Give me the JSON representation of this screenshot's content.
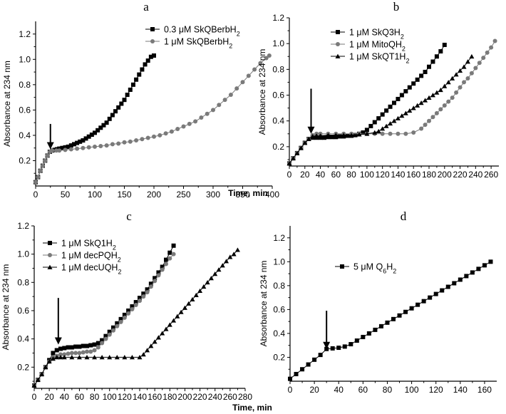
{
  "figure": {
    "shared_xlabel": "Time, min",
    "marker_colors": {
      "black": "#000000",
      "gray": "#7a7a7a"
    }
  },
  "chart_data": [
    {
      "panel": "a",
      "type": "scatter",
      "xlabel": "",
      "ylabel": "Absorbance at 234 nm",
      "xlim": [
        0,
        400
      ],
      "ylim": [
        0,
        1.3
      ],
      "xticks": [
        0,
        50,
        100,
        150,
        200,
        250,
        300,
        350,
        400
      ],
      "yticks": [
        0.2,
        0.4,
        0.6,
        0.8,
        1.0,
        1.2
      ],
      "legend_position": "top-right",
      "arrow": {
        "x": 25,
        "y_from": 0.49,
        "y_to": 0.29
      },
      "series": [
        {
          "name": "0.3 μM SkQBerbH",
          "name_sub": "2",
          "marker": "square",
          "color": "#000000",
          "x": [
            0,
            4,
            8,
            12,
            16,
            20,
            24,
            28,
            32,
            36,
            40,
            45,
            50,
            55,
            60,
            65,
            70,
            75,
            80,
            85,
            90,
            95,
            100,
            105,
            110,
            115,
            120,
            125,
            130,
            135,
            140,
            145,
            150,
            155,
            160,
            165,
            170,
            175,
            180,
            185,
            190,
            195,
            200
          ],
          "y": [
            0.03,
            0.07,
            0.12,
            0.16,
            0.2,
            0.24,
            0.27,
            0.28,
            0.285,
            0.29,
            0.295,
            0.3,
            0.305,
            0.31,
            0.32,
            0.33,
            0.34,
            0.35,
            0.36,
            0.375,
            0.39,
            0.405,
            0.42,
            0.44,
            0.46,
            0.48,
            0.5,
            0.53,
            0.56,
            0.59,
            0.62,
            0.65,
            0.68,
            0.72,
            0.76,
            0.8,
            0.84,
            0.88,
            0.92,
            0.96,
            0.99,
            1.02,
            1.03
          ]
        },
        {
          "name": "1 μM SkQBerbH",
          "name_sub": "2",
          "marker": "circle",
          "color": "#7a7a7a",
          "x": [
            0,
            4,
            8,
            12,
            16,
            20,
            24,
            28,
            35,
            40,
            50,
            60,
            70,
            80,
            90,
            100,
            110,
            120,
            130,
            140,
            150,
            160,
            170,
            180,
            190,
            200,
            210,
            220,
            230,
            240,
            250,
            260,
            270,
            280,
            290,
            300,
            310,
            320,
            330,
            340,
            350,
            360,
            370,
            380,
            390,
            395
          ],
          "y": [
            0.03,
            0.07,
            0.12,
            0.16,
            0.2,
            0.24,
            0.27,
            0.28,
            0.28,
            0.28,
            0.285,
            0.29,
            0.295,
            0.3,
            0.305,
            0.31,
            0.315,
            0.32,
            0.33,
            0.335,
            0.345,
            0.35,
            0.36,
            0.37,
            0.38,
            0.39,
            0.4,
            0.415,
            0.43,
            0.45,
            0.47,
            0.49,
            0.51,
            0.54,
            0.57,
            0.6,
            0.64,
            0.68,
            0.72,
            0.77,
            0.82,
            0.87,
            0.92,
            0.97,
            1.01,
            1.03
          ]
        }
      ]
    },
    {
      "panel": "b",
      "type": "scatter",
      "xlabel": "",
      "ylabel": "Absorbance at 234 nm",
      "xlim": [
        0,
        270
      ],
      "ylim": [
        0.05,
        1.2
      ],
      "xticks": [
        0,
        20,
        40,
        60,
        80,
        100,
        120,
        140,
        160,
        180,
        200,
        220,
        240,
        260
      ],
      "yticks": [
        0.2,
        0.4,
        0.6,
        0.8,
        1.0,
        1.2
      ],
      "legend_position": "top-left",
      "arrow": {
        "x": 28,
        "y_from": 0.65,
        "y_to": 0.3
      },
      "series": [
        {
          "name": "1 μM SkQ3H",
          "name_sub": "2",
          "marker": "square",
          "color": "#000000",
          "x": [
            0,
            5,
            10,
            15,
            20,
            25,
            30,
            35,
            40,
            45,
            50,
            55,
            60,
            65,
            70,
            75,
            80,
            85,
            90,
            95,
            100,
            105,
            110,
            115,
            120,
            125,
            130,
            135,
            140,
            145,
            150,
            155,
            160,
            165,
            170,
            175,
            180,
            185,
            190,
            195,
            200
          ],
          "y": [
            0.07,
            0.11,
            0.15,
            0.19,
            0.23,
            0.26,
            0.27,
            0.27,
            0.27,
            0.27,
            0.275,
            0.275,
            0.275,
            0.28,
            0.28,
            0.285,
            0.285,
            0.29,
            0.3,
            0.31,
            0.33,
            0.36,
            0.39,
            0.42,
            0.45,
            0.48,
            0.51,
            0.54,
            0.57,
            0.6,
            0.63,
            0.66,
            0.69,
            0.72,
            0.75,
            0.78,
            0.82,
            0.86,
            0.9,
            0.94,
            0.99
          ]
        },
        {
          "name": "1 μM MitoQH",
          "name_sub": "2",
          "marker": "circle",
          "color": "#7a7a7a",
          "x": [
            0,
            5,
            10,
            15,
            20,
            25,
            30,
            35,
            40,
            50,
            60,
            70,
            80,
            90,
            100,
            110,
            120,
            130,
            140,
            150,
            160,
            170,
            175,
            180,
            185,
            190,
            195,
            200,
            205,
            210,
            215,
            220,
            225,
            230,
            235,
            240,
            245,
            250,
            255,
            260,
            265
          ],
          "y": [
            0.07,
            0.11,
            0.15,
            0.19,
            0.23,
            0.26,
            0.29,
            0.3,
            0.3,
            0.3,
            0.3,
            0.3,
            0.3,
            0.3,
            0.3,
            0.3,
            0.3,
            0.3,
            0.3,
            0.3,
            0.31,
            0.34,
            0.37,
            0.4,
            0.43,
            0.46,
            0.49,
            0.52,
            0.55,
            0.58,
            0.62,
            0.66,
            0.7,
            0.73,
            0.77,
            0.81,
            0.85,
            0.89,
            0.93,
            0.97,
            1.02
          ]
        },
        {
          "name": "1 μM SkQT1H",
          "name_sub": "2",
          "marker": "triangle",
          "color": "#000000",
          "x": [
            0,
            5,
            10,
            15,
            20,
            25,
            30,
            35,
            40,
            50,
            60,
            70,
            80,
            90,
            100,
            110,
            115,
            120,
            125,
            130,
            135,
            140,
            145,
            150,
            155,
            160,
            165,
            170,
            175,
            180,
            185,
            190,
            195,
            200,
            205,
            210,
            215,
            220,
            225,
            230,
            235
          ],
          "y": [
            0.07,
            0.11,
            0.15,
            0.19,
            0.23,
            0.26,
            0.28,
            0.285,
            0.285,
            0.29,
            0.29,
            0.29,
            0.29,
            0.295,
            0.3,
            0.31,
            0.32,
            0.34,
            0.36,
            0.38,
            0.4,
            0.42,
            0.44,
            0.46,
            0.48,
            0.5,
            0.52,
            0.54,
            0.56,
            0.58,
            0.6,
            0.62,
            0.64,
            0.67,
            0.7,
            0.73,
            0.76,
            0.79,
            0.82,
            0.86,
            0.9
          ]
        }
      ]
    },
    {
      "panel": "c",
      "type": "scatter",
      "xlabel": "",
      "ylabel": "Absorbance at 234 nm",
      "xlim": [
        0,
        280
      ],
      "ylim": [
        0.05,
        1.2
      ],
      "xticks": [
        0,
        20,
        40,
        60,
        80,
        100,
        120,
        140,
        160,
        180,
        200,
        220,
        240,
        260,
        280
      ],
      "yticks": [
        0.2,
        0.4,
        0.6,
        0.8,
        1.0,
        1.2
      ],
      "legend_position": "top-left",
      "arrow": {
        "x": 32,
        "y_from": 0.69,
        "y_to": 0.36
      },
      "series": [
        {
          "name": "1 μM SkQ1H",
          "name_sub": "2",
          "marker": "square",
          "color": "#000000",
          "x": [
            0,
            5,
            10,
            15,
            20,
            25,
            30,
            35,
            40,
            45,
            50,
            55,
            60,
            65,
            70,
            75,
            80,
            85,
            90,
            95,
            100,
            105,
            110,
            115,
            120,
            125,
            130,
            135,
            140,
            145,
            150,
            155,
            160,
            165,
            170,
            175,
            180,
            185
          ],
          "y": [
            0.07,
            0.11,
            0.15,
            0.2,
            0.25,
            0.3,
            0.32,
            0.33,
            0.335,
            0.34,
            0.34,
            0.345,
            0.345,
            0.35,
            0.35,
            0.355,
            0.36,
            0.37,
            0.39,
            0.42,
            0.45,
            0.48,
            0.51,
            0.54,
            0.57,
            0.6,
            0.63,
            0.66,
            0.69,
            0.72,
            0.75,
            0.79,
            0.83,
            0.87,
            0.91,
            0.96,
            1.01,
            1.06
          ]
        },
        {
          "name": "1 μM decPQH",
          "name_sub": "2",
          "marker": "circle",
          "color": "#7a7a7a",
          "x": [
            0,
            5,
            10,
            15,
            20,
            25,
            30,
            35,
            40,
            45,
            50,
            55,
            60,
            65,
            70,
            75,
            80,
            85,
            90,
            95,
            100,
            105,
            110,
            115,
            120,
            125,
            130,
            135,
            140,
            145,
            150,
            155,
            160,
            165,
            170,
            175,
            180,
            185
          ],
          "y": [
            0.07,
            0.11,
            0.15,
            0.2,
            0.24,
            0.27,
            0.28,
            0.29,
            0.29,
            0.295,
            0.3,
            0.3,
            0.3,
            0.305,
            0.31,
            0.31,
            0.32,
            0.34,
            0.37,
            0.4,
            0.43,
            0.46,
            0.49,
            0.52,
            0.55,
            0.58,
            0.61,
            0.64,
            0.67,
            0.7,
            0.73,
            0.77,
            0.81,
            0.85,
            0.89,
            0.93,
            0.97,
            1.0
          ]
        },
        {
          "name": "1 μM decUQH",
          "name_sub": "2",
          "marker": "triangle",
          "color": "#000000",
          "x": [
            0,
            5,
            10,
            15,
            20,
            25,
            30,
            35,
            40,
            50,
            60,
            70,
            80,
            90,
            100,
            110,
            120,
            130,
            140,
            145,
            150,
            155,
            160,
            165,
            170,
            175,
            180,
            185,
            190,
            195,
            200,
            205,
            210,
            215,
            220,
            225,
            230,
            235,
            240,
            245,
            250,
            255,
            260,
            265,
            270
          ],
          "y": [
            0.07,
            0.11,
            0.15,
            0.2,
            0.24,
            0.26,
            0.27,
            0.27,
            0.27,
            0.27,
            0.27,
            0.27,
            0.27,
            0.27,
            0.27,
            0.27,
            0.27,
            0.27,
            0.27,
            0.29,
            0.32,
            0.35,
            0.38,
            0.41,
            0.44,
            0.47,
            0.5,
            0.53,
            0.56,
            0.59,
            0.62,
            0.65,
            0.68,
            0.71,
            0.74,
            0.77,
            0.8,
            0.83,
            0.86,
            0.89,
            0.92,
            0.95,
            0.98,
            1.0,
            1.03
          ]
        }
      ]
    },
    {
      "panel": "d",
      "type": "scatter",
      "xlabel": "",
      "ylabel": "Absorbance at 234 nm",
      "xlim": [
        0,
        170
      ],
      "ylim": [
        0,
        1.3
      ],
      "xticks": [
        0,
        20,
        40,
        60,
        80,
        100,
        120,
        140,
        160
      ],
      "yticks": [
        0.2,
        0.4,
        0.6,
        0.8,
        1.0,
        1.2
      ],
      "legend_position": "top-left",
      "arrow": {
        "x": 30,
        "y_from": 0.59,
        "y_to": 0.27
      },
      "series": [
        {
          "name": "5 μM Q",
          "name_sub": "6",
          "name_suffix": "H",
          "name_sub2": "2",
          "marker": "square",
          "color": "#000000",
          "x": [
            0,
            5,
            10,
            15,
            20,
            25,
            30,
            35,
            40,
            45,
            50,
            55,
            60,
            65,
            70,
            75,
            80,
            85,
            90,
            95,
            100,
            105,
            110,
            115,
            120,
            125,
            130,
            135,
            140,
            145,
            150,
            155,
            160,
            165
          ],
          "y": [
            0.02,
            0.06,
            0.1,
            0.14,
            0.18,
            0.22,
            0.27,
            0.275,
            0.28,
            0.29,
            0.31,
            0.34,
            0.37,
            0.4,
            0.43,
            0.46,
            0.49,
            0.52,
            0.55,
            0.58,
            0.61,
            0.64,
            0.67,
            0.7,
            0.73,
            0.76,
            0.79,
            0.82,
            0.85,
            0.88,
            0.91,
            0.94,
            0.97,
            1.0
          ]
        }
      ]
    }
  ]
}
